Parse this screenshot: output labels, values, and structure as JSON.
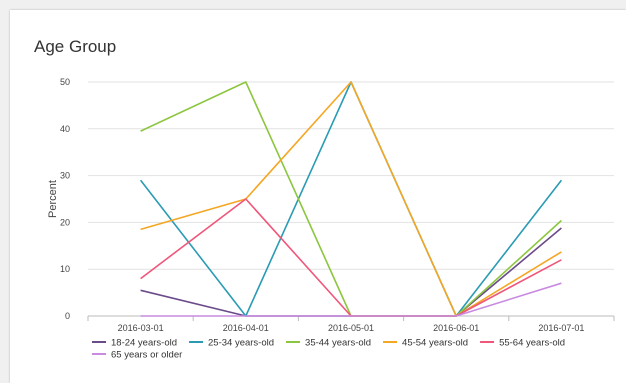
{
  "chart_data": {
    "type": "line",
    "title": "Age Group",
    "ylabel": "Percent",
    "xlabel": "",
    "ylim": [
      0,
      50
    ],
    "yticks": [
      0,
      10,
      20,
      30,
      40,
      50
    ],
    "grid": true,
    "legend_position": "bottom",
    "categories": [
      "2016-03-01",
      "2016-04-01",
      "2016-05-01",
      "2016-06-01",
      "2016-07-01"
    ],
    "series": [
      {
        "name": "18-24 years-old",
        "color": "#6b4b8a",
        "values": [
          5.5,
          0,
          0,
          0,
          18.8
        ]
      },
      {
        "name": "25-34 years-old",
        "color": "#2a9bb5",
        "values": [
          29,
          0,
          50,
          0,
          29
        ]
      },
      {
        "name": "35-44 years-old",
        "color": "#8cc63e",
        "values": [
          39.5,
          50,
          0,
          0,
          20.4
        ]
      },
      {
        "name": "45-54 years-old",
        "color": "#f5a623",
        "values": [
          18.5,
          25,
          50,
          0,
          13.7
        ]
      },
      {
        "name": "55-64 years-old",
        "color": "#f0567a",
        "values": [
          8,
          25,
          0,
          0,
          12
        ]
      },
      {
        "name": "65 years or older",
        "color": "#c98be0",
        "values": [
          0,
          0,
          0,
          0,
          7
        ]
      }
    ]
  }
}
